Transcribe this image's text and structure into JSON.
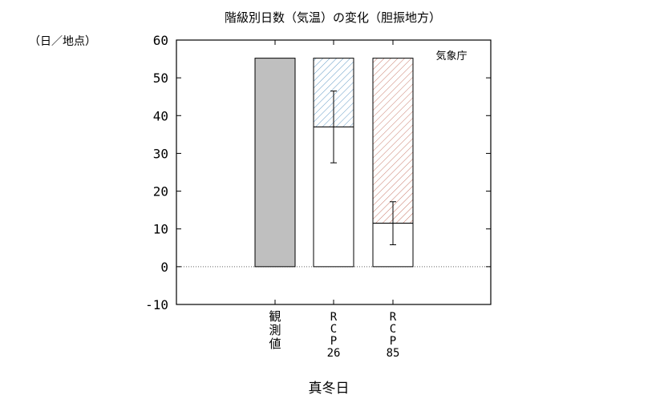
{
  "chart_data": {
    "type": "bar",
    "title": "階級別日数（気温）の変化（胆振地方）",
    "ylabel": "（日／地点）",
    "xlabel": "真冬日",
    "watermark": "気象庁",
    "ylim": [
      -10,
      60
    ],
    "yticks": [
      -10,
      0,
      10,
      20,
      30,
      40,
      50,
      60
    ],
    "grid": false,
    "zero_line": "dotted",
    "categories": [
      {
        "lines": [
          "観",
          "測",
          "値"
        ]
      },
      {
        "lines": [
          "R",
          "C",
          "P",
          "26"
        ]
      },
      {
        "lines": [
          "R",
          "C",
          "P",
          "85"
        ]
      }
    ],
    "series": [
      {
        "values": [
          55.2,
          37.0,
          11.5
        ],
        "colors": [
          "#bfbfbf",
          "#ffffff",
          "#ffffff"
        ]
      },
      {
        "values": [
          null,
          55.2,
          55.2
        ],
        "fill": "hatched",
        "colors": [
          null,
          "#6aa0c8",
          "#c87a6a"
        ]
      }
    ],
    "error_bars": [
      null,
      {
        "low": 27.5,
        "high": 46.5
      },
      {
        "low": 5.8,
        "high": 17.2
      }
    ]
  }
}
